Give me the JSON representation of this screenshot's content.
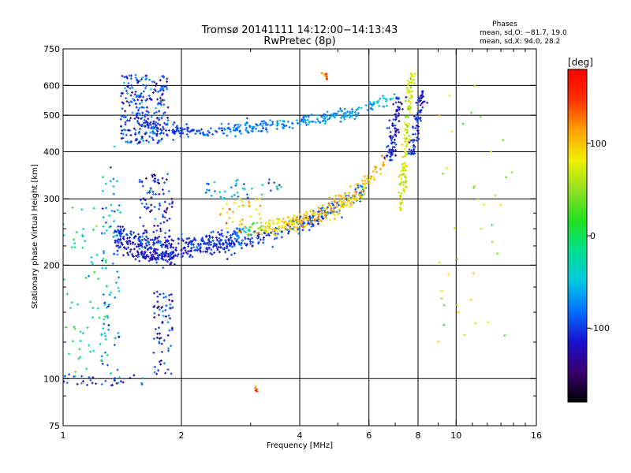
{
  "chart_data": {
    "type": "scatter",
    "title": "Tromsø 20141111 14:12:00−14:13:43",
    "subtitle": "RwPretec (8p)",
    "xlabel": "Frequency [MHz]",
    "ylabel": "Stationary phase Virtual Height [km]",
    "x_scale": "log",
    "y_scale": "log",
    "xlim": [
      1,
      16
    ],
    "ylim": [
      75,
      750
    ],
    "grid": true,
    "x_ticks": [
      1,
      2,
      4,
      6,
      8,
      10,
      16
    ],
    "x_minor_ticks": [
      3,
      5,
      7,
      9,
      11,
      12,
      13,
      14,
      15
    ],
    "x_gridlines": [
      2,
      4,
      6,
      8,
      10
    ],
    "y_ticks": [
      75,
      100,
      200,
      300,
      400,
      500,
      600,
      750
    ],
    "y_minor_ticks": [
      90,
      125,
      150,
      175,
      225,
      250,
      275
    ],
    "y_gridlines": [
      100,
      200,
      300,
      400,
      500,
      600
    ],
    "stats": {
      "heading": "Phases",
      "line1": "mean, sd,O: −81.7, 19.0",
      "line2": "mean, sd,X:  94.0, 28.2"
    },
    "colorbar": {
      "label": "[deg]",
      "range": [
        -180,
        180
      ],
      "ticks": [
        100,
        0,
        -100
      ],
      "colormap": [
        "#000000",
        "#3a0070",
        "#1a10d0",
        "#0070ff",
        "#00c8e0",
        "#00e090",
        "#20e020",
        "#90e020",
        "#f0f000",
        "#ffa000",
        "#ff3000",
        "#ff0000"
      ]
    },
    "series": [
      {
        "kind": "trace",
        "freq_range": [
          1.35,
          5.9
        ],
        "h": [
          230,
          215,
          213,
          218,
          225,
          234,
          245,
          262,
          285,
          320
        ],
        "phase": [
          -120,
          -125,
          -118,
          -115,
          -110,
          -105,
          -100,
          -95,
          -90,
          -80
        ],
        "spread": 0.025,
        "count": 420
      },
      {
        "kind": "trace",
        "freq_range": [
          1.35,
          6.6
        ],
        "h": [
          245,
          232,
          228,
          232,
          240,
          250,
          262,
          282,
          310,
          380
        ],
        "phase": [
          -105,
          -110,
          -108,
          -100,
          -95,
          85,
          95,
          100,
          105,
          110
        ],
        "spread": 0.025,
        "count": 420
      },
      {
        "kind": "trace",
        "freq_range": [
          1.6,
          7.0
        ],
        "h": [
          480,
          455,
          452,
          458,
          465,
          475,
          485,
          500,
          520,
          560
        ],
        "phase": [
          -110,
          -100,
          -90,
          -85,
          -80,
          -75,
          -72,
          -70,
          -60,
          -40
        ],
        "spread": 0.02,
        "count": 330
      },
      {
        "kind": "trace",
        "freq_range": [
          3.6,
          5.9
        ],
        "h": [
          255,
          258,
          262,
          268,
          275,
          285,
          300,
          320
        ],
        "phase": [
          90,
          100,
          110,
          105,
          100,
          95,
          90,
          80
        ],
        "spread": 0.02,
        "count": 90
      },
      {
        "kind": "vertical",
        "freq": 7.7,
        "h_range": [
          280,
          650
        ],
        "phase": 70,
        "spread": 0.01,
        "count": 150
      },
      {
        "kind": "vertical",
        "freq": 7.2,
        "h_range": [
          380,
          560
        ],
        "phase": -115,
        "spread": 0.015,
        "count": 90
      },
      {
        "kind": "vertical",
        "freq": 8.2,
        "h_range": [
          390,
          580
        ],
        "phase": -110,
        "spread": 0.012,
        "count": 80
      },
      {
        "kind": "cluster",
        "freq_range": [
          1.4,
          1.85
        ],
        "h_range": [
          420,
          640
        ],
        "phase": -100,
        "count": 260
      },
      {
        "kind": "cluster",
        "freq_range": [
          1.55,
          1.9
        ],
        "h_range": [
          200,
          350
        ],
        "phase": -105,
        "count": 140
      },
      {
        "kind": "cluster",
        "freq_range": [
          1.25,
          1.4
        ],
        "h_range": [
          95,
          420
        ],
        "phase": -60,
        "count": 80
      },
      {
        "kind": "cluster",
        "freq_range": [
          1.0,
          1.3
        ],
        "h_range": [
          98,
          300
        ],
        "phase": -20,
        "count": 70
      },
      {
        "kind": "cluster",
        "freq_range": [
          1.7,
          1.9
        ],
        "h_range": [
          100,
          170
        ],
        "phase": -110,
        "count": 70
      },
      {
        "kind": "cluster",
        "freq_range": [
          1.0,
          1.6
        ],
        "h_range": [
          96,
          104
        ],
        "phase": -110,
        "count": 30
      },
      {
        "kind": "cluster",
        "freq_range": [
          2.3,
          3.6
        ],
        "h_range": [
          300,
          340
        ],
        "phase": -60,
        "count": 40
      },
      {
        "kind": "cluster",
        "freq_range": [
          2.5,
          3.2
        ],
        "h_range": [
          240,
          300
        ],
        "phase": 100,
        "count": 40
      },
      {
        "kind": "cluster",
        "freq_range": [
          9.0,
          14.0
        ],
        "h_range": [
          120,
          620
        ],
        "phase": 60,
        "count": 40
      },
      {
        "kind": "cluster",
        "freq_range": [
          4.55,
          4.7
        ],
        "h_range": [
          620,
          650
        ],
        "phase": 130,
        "count": 10
      },
      {
        "kind": "cluster",
        "freq_range": [
          3.05,
          3.12
        ],
        "h_range": [
          92,
          96
        ],
        "phase": 140,
        "count": 6
      }
    ]
  }
}
